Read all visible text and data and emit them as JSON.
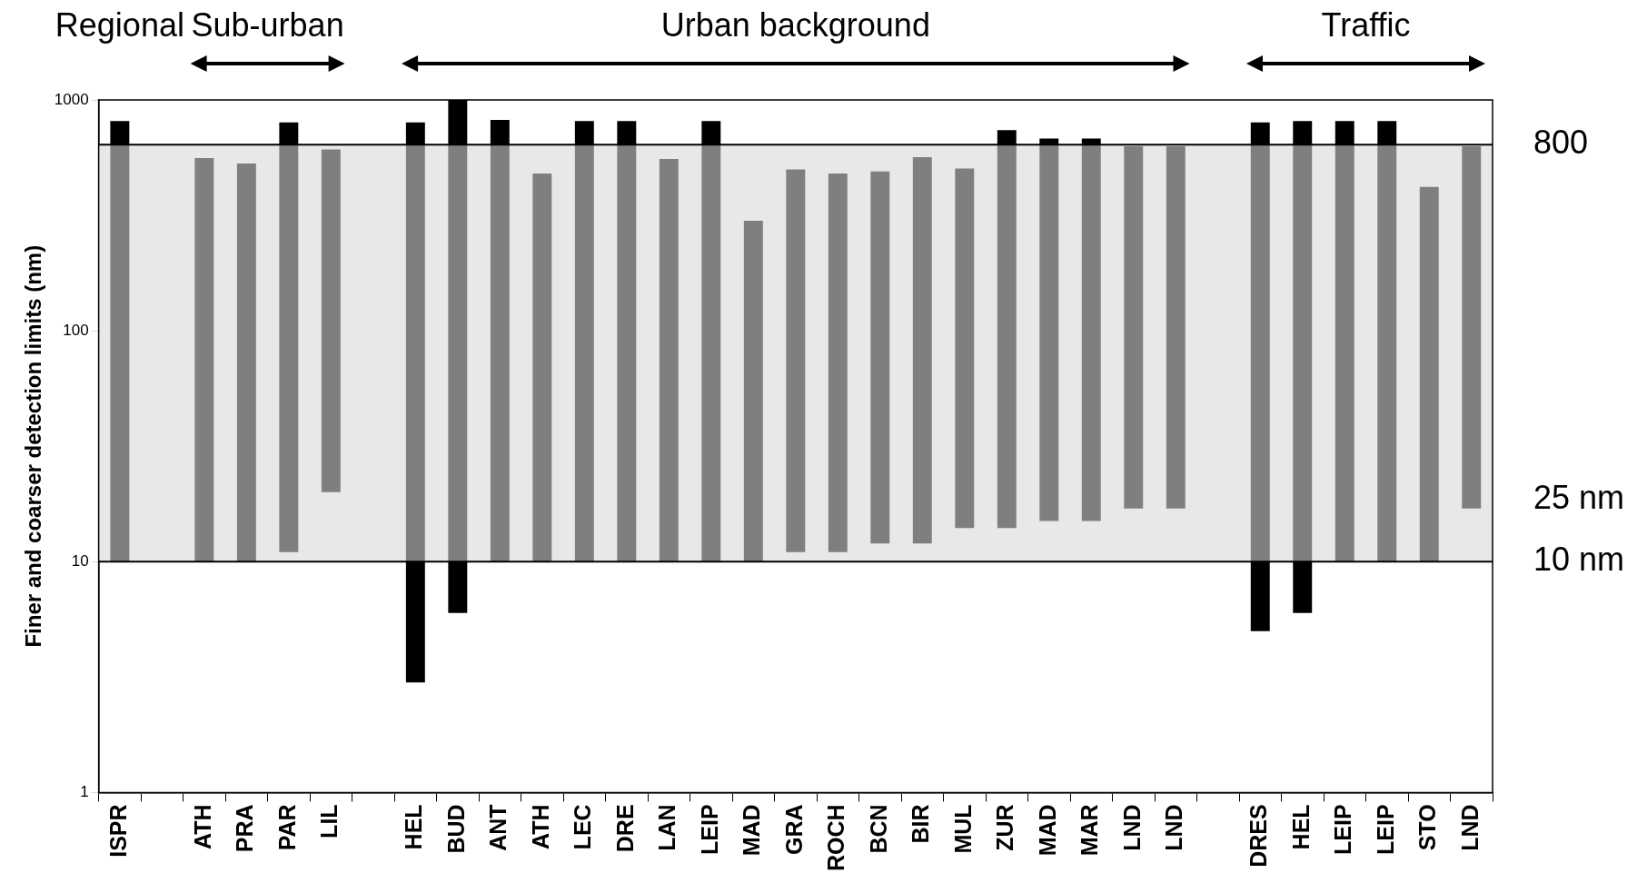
{
  "chart_data": {
    "type": "bar",
    "ylabel": "Finer and coarser detection limits (nm)",
    "categories": [
      "ISPR",
      null,
      "ATH",
      "PRA",
      "PAR",
      "LIL",
      null,
      "HEL",
      "BUD",
      "ANT",
      "ATH",
      "LEC",
      "DRE",
      "LAN",
      "LEIP",
      "MAD",
      "GRA",
      "ROCH",
      "BCN",
      "BIR",
      "MUL",
      "ZUR",
      "MAD",
      "MAR",
      "LND",
      "LND",
      null,
      "DRES",
      "HEL",
      "LEIP",
      "LEIP",
      "STO",
      "LND"
    ],
    "series": [
      {
        "color": "#000000",
        "base": [
          null,
          null,
          null,
          null,
          null,
          null,
          null,
          3,
          6,
          null,
          null,
          null,
          null,
          null,
          null,
          null,
          null,
          null,
          null,
          null,
          null,
          null,
          null,
          null,
          null,
          null,
          null,
          5,
          6,
          null,
          null,
          null,
          null
        ],
        "values": [
          null,
          null,
          null,
          null,
          null,
          null,
          null,
          7,
          4,
          null,
          null,
          null,
          null,
          null,
          null,
          null,
          null,
          null,
          null,
          null,
          null,
          null,
          null,
          null,
          null,
          null,
          null,
          5,
          4,
          null,
          null,
          null,
          null
        ]
      },
      {
        "color": "#7f7f7f",
        "base": [
          10,
          null,
          10,
          10,
          11,
          20,
          null,
          10,
          10,
          10,
          10,
          10,
          10,
          10,
          10,
          10,
          11,
          11,
          12,
          12,
          14,
          14,
          15,
          15,
          17,
          17,
          null,
          10,
          10,
          10,
          10,
          10,
          17
        ],
        "values": [
          630,
          null,
          550,
          520,
          629,
          590,
          null,
          630,
          630,
          630,
          470,
          630,
          630,
          545,
          630,
          290,
          489,
          469,
          478,
          553,
          491,
          626,
          625,
          625,
          613,
          613,
          null,
          630,
          630,
          630,
          630,
          410,
          613
        ]
      },
      {
        "color": "#000000",
        "base": [
          640,
          null,
          null,
          null,
          640,
          null,
          null,
          640,
          640,
          640,
          null,
          640,
          640,
          null,
          640,
          null,
          null,
          null,
          null,
          null,
          null,
          640,
          640,
          640,
          null,
          null,
          null,
          640,
          640,
          640,
          640,
          null,
          null
        ],
        "values": [
          170,
          null,
          null,
          null,
          160,
          null,
          null,
          160,
          360,
          180,
          null,
          170,
          170,
          null,
          170,
          null,
          null,
          null,
          null,
          null,
          null,
          100,
          40,
          40,
          null,
          null,
          null,
          160,
          170,
          170,
          170,
          null,
          null
        ]
      }
    ],
    "log": "y",
    "ylim": [
      1,
      1000
    ],
    "yticks": [
      1,
      10,
      100,
      1000
    ],
    "grid": "y",
    "legend": false,
    "bands": [
      {
        "axis": "y",
        "from": 10,
        "to": 640,
        "color": "#e8e8e8"
      }
    ],
    "annotations": [
      "Regional",
      "Sub-urban",
      "Urban background",
      "Traffic",
      "800",
      "25 nm",
      "10 nm"
    ]
  }
}
